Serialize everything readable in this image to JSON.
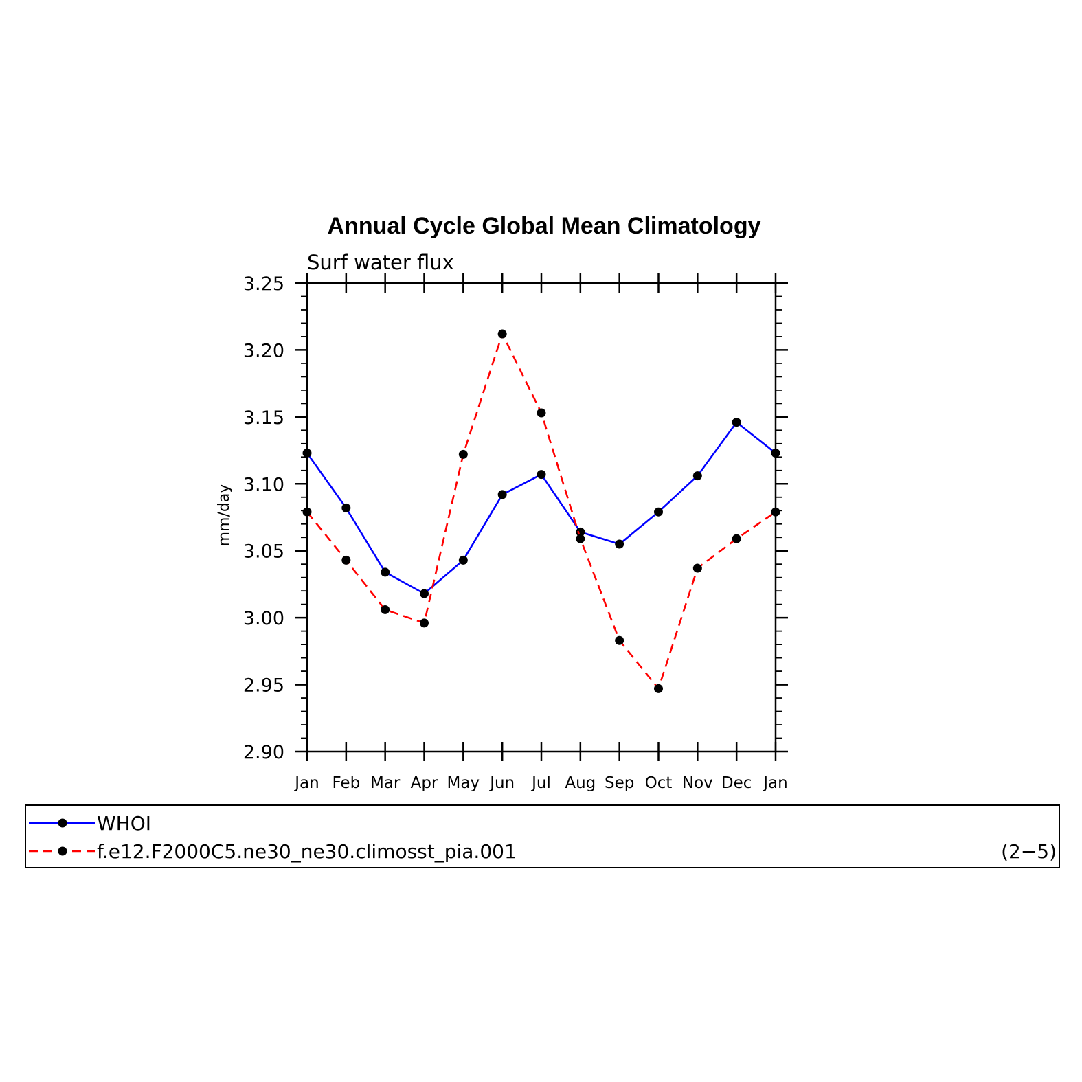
{
  "chart_data": {
    "type": "line",
    "title": "Annual Cycle Global Mean Climatology",
    "subtitle": "Surf water flux",
    "ylabel": "mm/day",
    "xlabel": "",
    "categories": [
      "Jan",
      "Feb",
      "Mar",
      "Apr",
      "May",
      "Jun",
      "Jul",
      "Aug",
      "Sep",
      "Oct",
      "Nov",
      "Dec",
      "Jan"
    ],
    "ylim": [
      2.9,
      3.25
    ],
    "yticks": [
      "2.90",
      "2.95",
      "3.00",
      "3.05",
      "3.10",
      "3.15",
      "3.20",
      "3.25"
    ],
    "series": [
      {
        "name": "WHOI",
        "color": "#0000ff",
        "dash": false,
        "values": [
          3.123,
          3.082,
          3.034,
          3.018,
          3.043,
          3.092,
          3.107,
          3.064,
          3.055,
          3.079,
          3.106,
          3.146,
          3.123
        ]
      },
      {
        "name": "f.e12.F2000C5.ne30_ne30.climosst_pia.001",
        "color": "#ff0000",
        "dash": true,
        "values": [
          3.079,
          3.043,
          3.006,
          2.996,
          3.122,
          3.212,
          3.153,
          3.059,
          2.983,
          2.947,
          3.037,
          3.059,
          3.079
        ]
      }
    ],
    "legend_position": "bottom",
    "legend_note": "(2−5)"
  }
}
